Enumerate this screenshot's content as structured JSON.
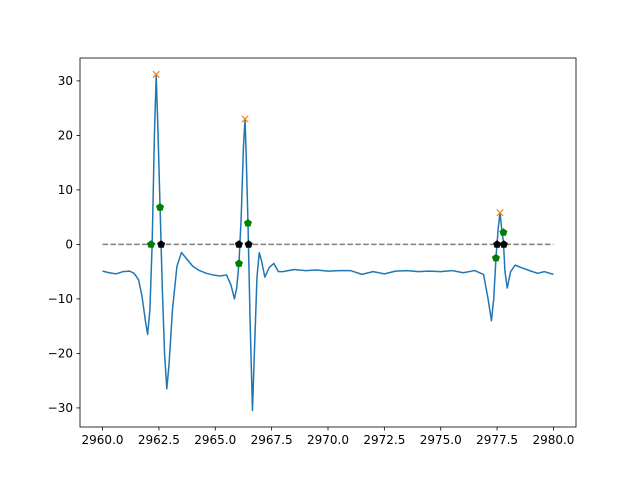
{
  "chart_data": {
    "type": "line",
    "title": "",
    "xlabel": "",
    "ylabel": "",
    "xlim": [
      2959.0,
      2981.0
    ],
    "ylim": [
      -33.5,
      34.2
    ],
    "grid": false,
    "xticks": [
      "2960.0",
      "2962.5",
      "2965.0",
      "2967.5",
      "2970.0",
      "2972.5",
      "2975.0",
      "2977.5",
      "2980.0"
    ],
    "xtick_values": [
      2960.0,
      2962.5,
      2965.0,
      2967.5,
      2970.0,
      2972.5,
      2975.0,
      2977.5,
      2980.0
    ],
    "yticks": [
      "−30",
      "−20",
      "−10",
      "0",
      "10",
      "20",
      "30"
    ],
    "ytick_values": [
      -30,
      -20,
      -10,
      0,
      10,
      20,
      30
    ],
    "colors": {
      "signal": "#1f77b4",
      "peaks": "#ff7f0e",
      "baseline": "#808080",
      "green_markers": "#008000",
      "black_markers": "#000000"
    },
    "series": [
      {
        "type": "line",
        "points": [
          [
            2960.0,
            -4.9
          ],
          [
            2960.3,
            -5.2
          ],
          [
            2960.6,
            -5.4
          ],
          [
            2960.9,
            -5.0
          ],
          [
            2961.2,
            -4.9
          ],
          [
            2961.4,
            -5.3
          ],
          [
            2961.6,
            -6.5
          ],
          [
            2961.75,
            -9.5
          ],
          [
            2961.9,
            -14.0
          ],
          [
            2962.0,
            -16.5
          ],
          [
            2962.1,
            -12.0
          ],
          [
            2962.2,
            0.0
          ],
          [
            2962.3,
            20.0
          ],
          [
            2962.38,
            31.0
          ],
          [
            2962.45,
            22.0
          ],
          [
            2962.55,
            7.0
          ],
          [
            2962.65,
            -8.0
          ],
          [
            2962.75,
            -20.0
          ],
          [
            2962.85,
            -26.5
          ],
          [
            2962.95,
            -22.0
          ],
          [
            2963.1,
            -12.0
          ],
          [
            2963.3,
            -4.0
          ],
          [
            2963.5,
            -1.5
          ],
          [
            2963.7,
            -2.5
          ],
          [
            2964.0,
            -4.0
          ],
          [
            2964.3,
            -4.8
          ],
          [
            2964.6,
            -5.3
          ],
          [
            2964.9,
            -5.6
          ],
          [
            2965.2,
            -5.8
          ],
          [
            2965.5,
            -5.6
          ],
          [
            2965.7,
            -7.5
          ],
          [
            2965.85,
            -10.0
          ],
          [
            2965.95,
            -8.0
          ],
          [
            2966.05,
            -3.5
          ],
          [
            2966.15,
            5.0
          ],
          [
            2966.25,
            18.0
          ],
          [
            2966.32,
            23.0
          ],
          [
            2966.38,
            15.0
          ],
          [
            2966.45,
            4.0
          ],
          [
            2966.55,
            -15.0
          ],
          [
            2966.65,
            -30.5
          ],
          [
            2966.75,
            -18.0
          ],
          [
            2966.85,
            -6.0
          ],
          [
            2966.95,
            -1.5
          ],
          [
            2967.05,
            -3.0
          ],
          [
            2967.2,
            -6.0
          ],
          [
            2967.4,
            -4.2
          ],
          [
            2967.6,
            -3.5
          ],
          [
            2967.8,
            -5.0
          ],
          [
            2968.0,
            -5.0
          ],
          [
            2968.5,
            -4.6
          ],
          [
            2969.0,
            -4.8
          ],
          [
            2969.5,
            -4.7
          ],
          [
            2970.0,
            -4.9
          ],
          [
            2970.5,
            -4.8
          ],
          [
            2971.0,
            -4.8
          ],
          [
            2971.5,
            -5.5
          ],
          [
            2972.0,
            -5.0
          ],
          [
            2972.5,
            -5.4
          ],
          [
            2973.0,
            -4.9
          ],
          [
            2973.5,
            -4.8
          ],
          [
            2974.0,
            -5.0
          ],
          [
            2974.5,
            -4.9
          ],
          [
            2975.0,
            -5.0
          ],
          [
            2975.5,
            -4.8
          ],
          [
            2976.0,
            -5.2
          ],
          [
            2976.5,
            -4.8
          ],
          [
            2976.9,
            -5.5
          ],
          [
            2977.1,
            -10.0
          ],
          [
            2977.25,
            -14.0
          ],
          [
            2977.35,
            -10.0
          ],
          [
            2977.45,
            -2.5
          ],
          [
            2977.55,
            3.0
          ],
          [
            2977.63,
            5.8
          ],
          [
            2977.7,
            3.0
          ],
          [
            2977.78,
            0.5
          ],
          [
            2977.85,
            -5.0
          ],
          [
            2977.95,
            -8.0
          ],
          [
            2978.1,
            -5.0
          ],
          [
            2978.3,
            -3.8
          ],
          [
            2978.6,
            -4.3
          ],
          [
            2979.0,
            -4.9
          ],
          [
            2979.3,
            -5.3
          ],
          [
            2979.6,
            -5.0
          ],
          [
            2980.0,
            -5.5
          ]
        ]
      }
    ],
    "peaks": [
      [
        2962.38,
        31.2
      ],
      [
        2966.32,
        23.0
      ],
      [
        2977.63,
        5.8
      ]
    ],
    "baseline": {
      "y": 0,
      "x_start": 2960.0,
      "x_end": 2980.0
    },
    "green_markers": [
      [
        2962.15,
        0.0
      ],
      [
        2962.55,
        6.8
      ],
      [
        2966.05,
        -3.5
      ],
      [
        2966.45,
        3.9
      ],
      [
        2977.45,
        -2.5
      ],
      [
        2977.78,
        2.2
      ]
    ],
    "black_markers": [
      [
        2962.6,
        0.0
      ],
      [
        2966.05,
        0.0
      ],
      [
        2966.48,
        0.0
      ],
      [
        2977.5,
        0.0
      ],
      [
        2977.8,
        0.0
      ]
    ]
  }
}
